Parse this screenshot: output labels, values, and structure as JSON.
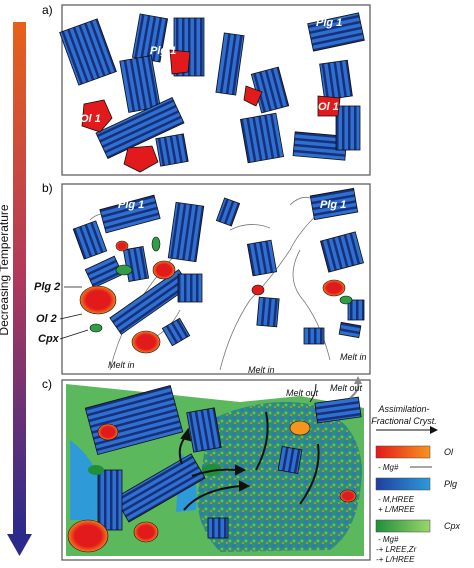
{
  "temperature_axis": {
    "label": "Decreasing Temperature",
    "gradient_top": "#e8611a",
    "gradient_bottom": "#2b2a8c"
  },
  "panels": [
    {
      "letter": "a)",
      "labels": {
        "plg1_left": "Plg 1",
        "plg1_right": "Plg 1",
        "ol1_left": "Ol 1",
        "ol1_right": "Ol 1"
      }
    },
    {
      "letter": "b)",
      "labels": {
        "plg1_left": "Plg 1",
        "plg1_right": "Plg 1",
        "side_plg2": "Plg 2",
        "side_ol2": "Ol 2",
        "side_cpx": "Cpx",
        "melt_in_left": "Melt in",
        "melt_in_mid": "Melt in",
        "melt_in_right": "Melt in"
      }
    },
    {
      "letter": "c)",
      "labels": {
        "melt_out_left": "Melt out",
        "melt_out_right": "Melt out"
      }
    }
  ],
  "legend": {
    "title": "Assimilation-\nFractional Cryst.",
    "items": [
      {
        "name": "Ol",
        "note1": "- Mg#",
        "note2": "",
        "color_left": "#e31a1c",
        "color_right": "#f7941d"
      },
      {
        "name": "Plg",
        "note1": "- M,HREE",
        "note2": "+ L/MREE",
        "color_left": "#1f3f9f",
        "color_right": "#2e9ad8"
      },
      {
        "name": "Cpx",
        "note1": "- Mg#",
        "note2": "-+ LREE,Zr",
        "note3": "-+ L/HREE",
        "color_left": "#1f8f3a",
        "color_right": "#9bd66b"
      }
    ]
  },
  "colors": {
    "plg_dark": "#1f3f9f",
    "plg_light": "#2e9ad8",
    "ol": "#e31a1c",
    "ol_rim": "#f7941d",
    "cpx": "#2f9e44",
    "melt_green": "#5cb85c",
    "frame": "#555555"
  }
}
